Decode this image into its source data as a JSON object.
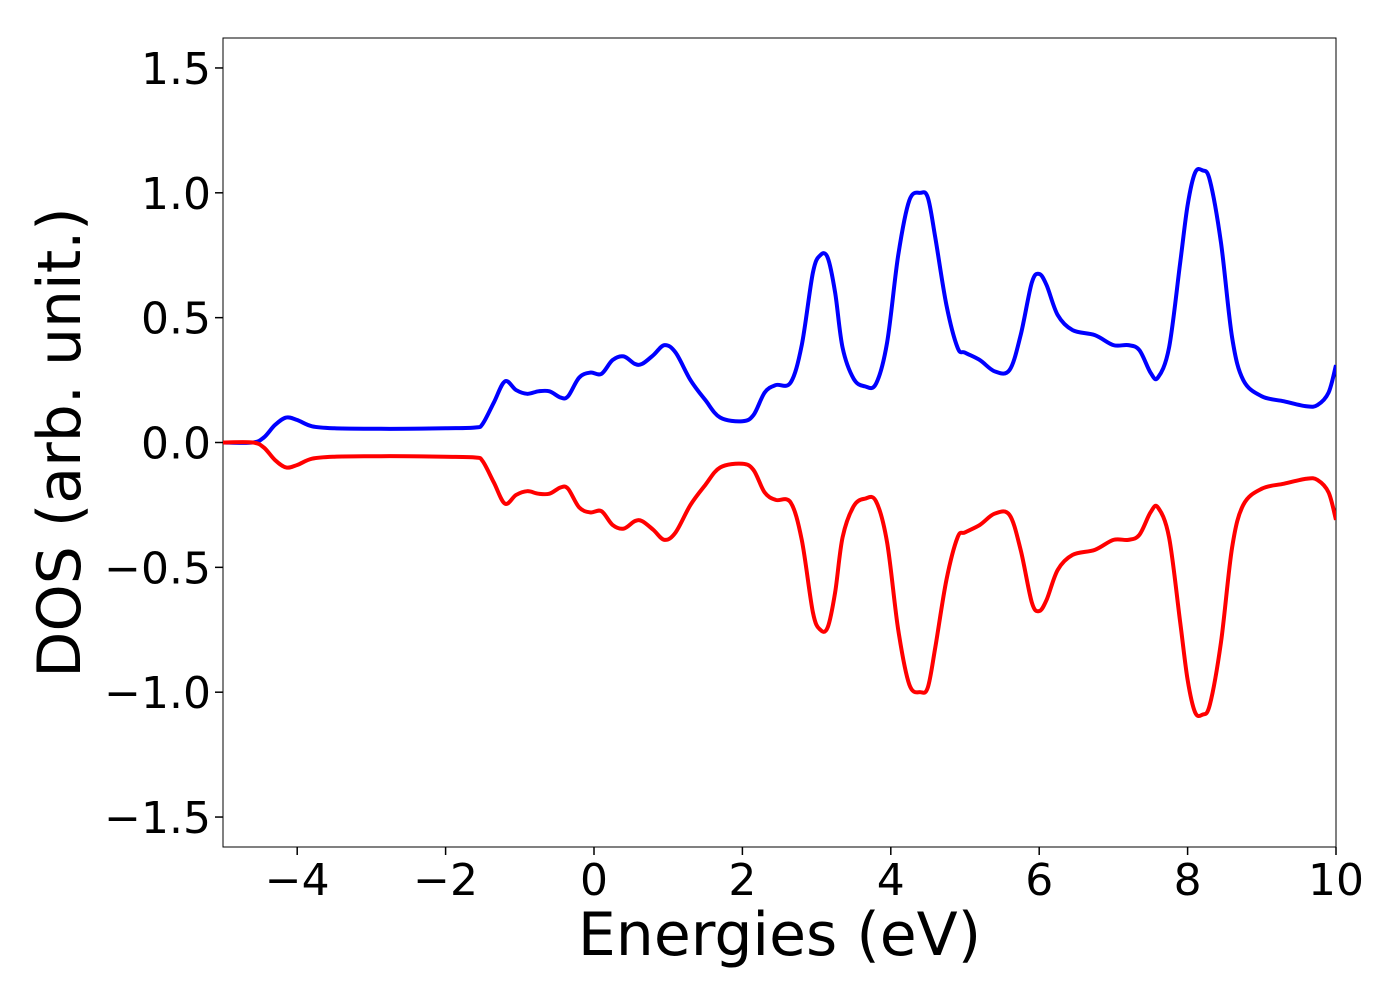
{
  "chart_data": {
    "type": "line",
    "xlabel": "Energies (eV)",
    "ylabel": "DOS (arb. unit.)",
    "xlim": [
      -5,
      10
    ],
    "ylim": [
      -1.62,
      1.62
    ],
    "grid": false,
    "x_ticks": [
      -4,
      -2,
      0,
      2,
      4,
      6,
      8,
      10
    ],
    "x_tick_labels": [
      "−4",
      "−2",
      "0",
      "2",
      "4",
      "6",
      "8",
      "10"
    ],
    "y_ticks": [
      1.5,
      1.0,
      0.5,
      0.0,
      -0.5,
      -1.0,
      -1.5
    ],
    "y_tick_labels": [
      "1.5",
      "1.0",
      "0.5",
      "0.0",
      "−0.5",
      "−1.0",
      "−1.5"
    ],
    "series": [
      {
        "color": "#0000ff",
        "x": [
          -5.0,
          -4.6,
          -4.45,
          -4.3,
          -4.15,
          -4.0,
          -3.8,
          -3.5,
          -3.0,
          -2.5,
          -2.0,
          -1.6,
          -1.5,
          -1.35,
          -1.2,
          -1.05,
          -0.9,
          -0.75,
          -0.6,
          -0.45,
          -0.35,
          -0.2,
          -0.05,
          0.1,
          0.25,
          0.4,
          0.55,
          0.65,
          0.8,
          0.95,
          1.1,
          1.3,
          1.5,
          1.7,
          2.0,
          2.15,
          2.3,
          2.45,
          2.65,
          2.8,
          2.95,
          3.05,
          3.15,
          3.25,
          3.35,
          3.5,
          3.65,
          3.8,
          3.95,
          4.1,
          4.25,
          4.4,
          4.5,
          4.6,
          4.75,
          4.9,
          5.0,
          5.2,
          5.4,
          5.6,
          5.75,
          5.9,
          6.0,
          6.1,
          6.25,
          6.45,
          6.75,
          7.0,
          7.2,
          7.35,
          7.5,
          7.6,
          7.75,
          7.9,
          8.0,
          8.1,
          8.2,
          8.3,
          8.45,
          8.6,
          8.75,
          9.0,
          9.3,
          9.6,
          9.75,
          9.9,
          10.0
        ],
        "y": [
          0.0,
          0.0,
          0.02,
          0.07,
          0.1,
          0.09,
          0.065,
          0.057,
          0.055,
          0.055,
          0.057,
          0.06,
          0.075,
          0.16,
          0.245,
          0.21,
          0.195,
          0.205,
          0.205,
          0.18,
          0.185,
          0.26,
          0.28,
          0.275,
          0.33,
          0.345,
          0.315,
          0.315,
          0.35,
          0.39,
          0.36,
          0.25,
          0.17,
          0.1,
          0.085,
          0.11,
          0.2,
          0.23,
          0.24,
          0.39,
          0.68,
          0.75,
          0.74,
          0.6,
          0.38,
          0.255,
          0.225,
          0.235,
          0.4,
          0.75,
          0.97,
          1.0,
          0.98,
          0.82,
          0.55,
          0.38,
          0.36,
          0.33,
          0.285,
          0.29,
          0.43,
          0.64,
          0.675,
          0.63,
          0.51,
          0.45,
          0.43,
          0.39,
          0.39,
          0.37,
          0.28,
          0.26,
          0.38,
          0.72,
          0.95,
          1.08,
          1.09,
          1.05,
          0.8,
          0.42,
          0.25,
          0.185,
          0.165,
          0.145,
          0.15,
          0.2,
          0.31
        ]
      },
      {
        "color": "#ff0000",
        "x": [
          -5.0,
          -4.6,
          -4.45,
          -4.3,
          -4.15,
          -4.0,
          -3.8,
          -3.5,
          -3.0,
          -2.5,
          -2.0,
          -1.6,
          -1.5,
          -1.35,
          -1.2,
          -1.05,
          -0.9,
          -0.75,
          -0.6,
          -0.45,
          -0.35,
          -0.2,
          -0.05,
          0.1,
          0.25,
          0.4,
          0.55,
          0.65,
          0.8,
          0.95,
          1.1,
          1.3,
          1.5,
          1.7,
          2.0,
          2.15,
          2.3,
          2.45,
          2.65,
          2.8,
          2.95,
          3.05,
          3.15,
          3.25,
          3.35,
          3.5,
          3.65,
          3.8,
          3.95,
          4.1,
          4.25,
          4.4,
          4.5,
          4.6,
          4.75,
          4.9,
          5.0,
          5.2,
          5.4,
          5.6,
          5.75,
          5.9,
          6.0,
          6.1,
          6.25,
          6.45,
          6.75,
          7.0,
          7.2,
          7.35,
          7.5,
          7.6,
          7.75,
          7.9,
          8.0,
          8.1,
          8.2,
          8.3,
          8.45,
          8.6,
          8.75,
          9.0,
          9.3,
          9.6,
          9.75,
          9.9,
          10.0
        ],
        "y": [
          0.0,
          0.0,
          -0.02,
          -0.07,
          -0.1,
          -0.09,
          -0.065,
          -0.057,
          -0.055,
          -0.055,
          -0.057,
          -0.06,
          -0.075,
          -0.16,
          -0.245,
          -0.21,
          -0.195,
          -0.205,
          -0.205,
          -0.18,
          -0.185,
          -0.26,
          -0.28,
          -0.275,
          -0.33,
          -0.345,
          -0.315,
          -0.315,
          -0.35,
          -0.39,
          -0.36,
          -0.25,
          -0.17,
          -0.1,
          -0.085,
          -0.11,
          -0.2,
          -0.23,
          -0.24,
          -0.39,
          -0.68,
          -0.75,
          -0.74,
          -0.6,
          -0.38,
          -0.255,
          -0.225,
          -0.235,
          -0.4,
          -0.75,
          -0.97,
          -1.0,
          -0.98,
          -0.82,
          -0.55,
          -0.38,
          -0.36,
          -0.33,
          -0.285,
          -0.29,
          -0.43,
          -0.64,
          -0.675,
          -0.63,
          -0.51,
          -0.45,
          -0.43,
          -0.39,
          -0.39,
          -0.37,
          -0.28,
          -0.26,
          -0.38,
          -0.72,
          -0.95,
          -1.08,
          -1.09,
          -1.05,
          -0.8,
          -0.42,
          -0.25,
          -0.185,
          -0.165,
          -0.145,
          -0.15,
          -0.2,
          -0.31
        ]
      }
    ]
  }
}
